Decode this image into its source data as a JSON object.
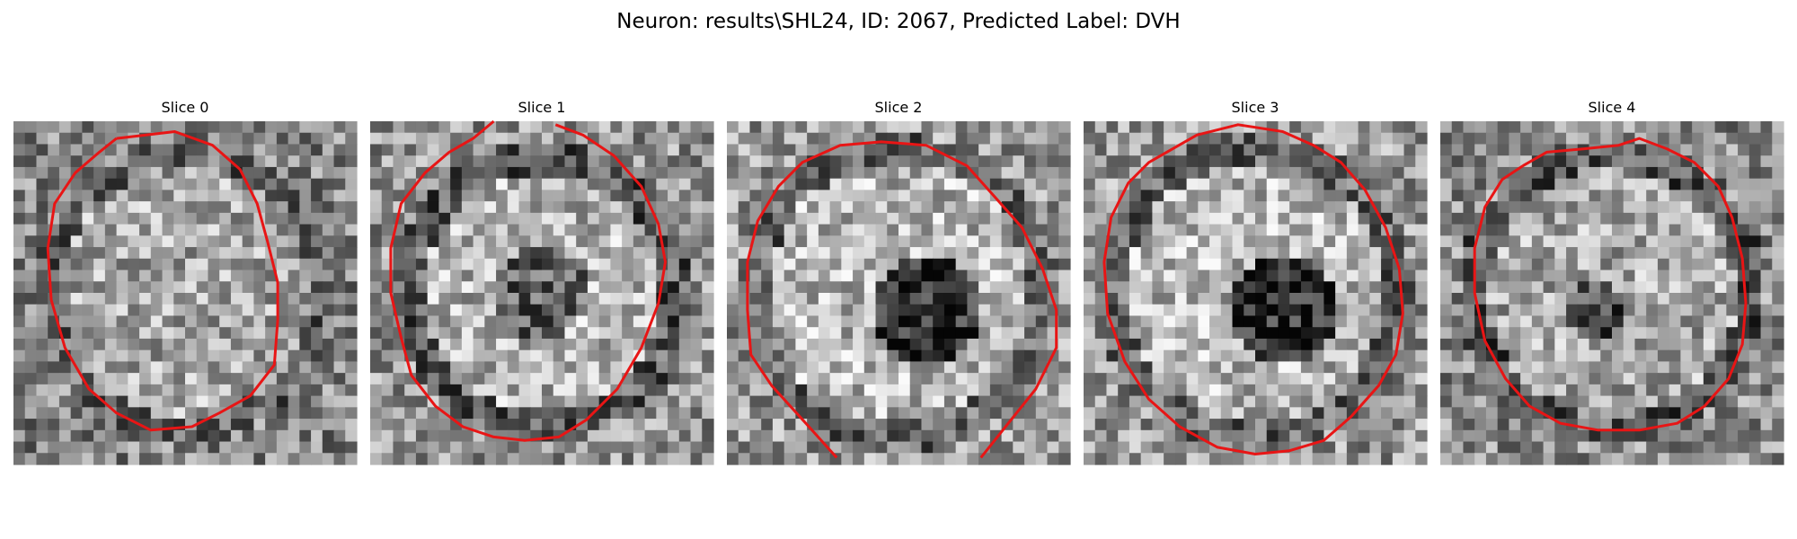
{
  "figure": {
    "title": "Neuron: results\\SHL24, ID: 2067, Predicted Label: DVH"
  },
  "panels": [
    {
      "title": "Slice 0",
      "seed": 11,
      "pattern": "filled",
      "contour": [
        [
          0.3,
          0.05
        ],
        [
          0.47,
          0.03
        ],
        [
          0.58,
          0.07
        ],
        [
          0.66,
          0.14
        ],
        [
          0.71,
          0.24
        ],
        [
          0.74,
          0.35
        ],
        [
          0.77,
          0.47
        ],
        [
          0.77,
          0.58
        ],
        [
          0.76,
          0.71
        ],
        [
          0.69,
          0.8
        ],
        [
          0.6,
          0.85
        ],
        [
          0.52,
          0.89
        ],
        [
          0.4,
          0.9
        ],
        [
          0.3,
          0.85
        ],
        [
          0.22,
          0.78
        ],
        [
          0.15,
          0.66
        ],
        [
          0.11,
          0.52
        ],
        [
          0.1,
          0.37
        ],
        [
          0.12,
          0.24
        ],
        [
          0.18,
          0.15
        ],
        [
          0.25,
          0.09
        ],
        [
          0.3,
          0.05
        ]
      ],
      "closed": true,
      "open_gap": false
    },
    {
      "title": "Slice 1",
      "seed": 23,
      "pattern": "ring",
      "contour": [
        [
          0.36,
          0.0
        ],
        [
          0.3,
          0.05
        ],
        [
          0.23,
          0.09
        ],
        [
          0.16,
          0.15
        ],
        [
          0.09,
          0.24
        ],
        [
          0.06,
          0.37
        ],
        [
          0.06,
          0.5
        ],
        [
          0.09,
          0.63
        ],
        [
          0.12,
          0.74
        ],
        [
          0.19,
          0.83
        ],
        [
          0.27,
          0.89
        ],
        [
          0.36,
          0.92
        ],
        [
          0.45,
          0.93
        ],
        [
          0.55,
          0.92
        ],
        [
          0.63,
          0.87
        ],
        [
          0.72,
          0.78
        ],
        [
          0.79,
          0.66
        ],
        [
          0.84,
          0.53
        ],
        [
          0.86,
          0.41
        ],
        [
          0.84,
          0.3
        ],
        [
          0.79,
          0.19
        ],
        [
          0.71,
          0.1
        ],
        [
          0.62,
          0.04
        ],
        [
          0.54,
          0.01
        ]
      ],
      "closed": false,
      "open_gap": true
    },
    {
      "title": "Slice 2",
      "seed": 37,
      "pattern": "ring-dark",
      "contour": [
        [
          0.32,
          0.98
        ],
        [
          0.23,
          0.88
        ],
        [
          0.13,
          0.77
        ],
        [
          0.07,
          0.68
        ],
        [
          0.06,
          0.55
        ],
        [
          0.06,
          0.41
        ],
        [
          0.09,
          0.29
        ],
        [
          0.15,
          0.19
        ],
        [
          0.22,
          0.12
        ],
        [
          0.33,
          0.07
        ],
        [
          0.45,
          0.06
        ],
        [
          0.58,
          0.07
        ],
        [
          0.7,
          0.13
        ],
        [
          0.78,
          0.22
        ],
        [
          0.86,
          0.31
        ],
        [
          0.92,
          0.43
        ],
        [
          0.96,
          0.55
        ],
        [
          0.96,
          0.66
        ],
        [
          0.9,
          0.78
        ],
        [
          0.82,
          0.88
        ],
        [
          0.74,
          0.98
        ]
      ],
      "closed": false,
      "open_gap": false
    },
    {
      "title": "Slice 3",
      "seed": 53,
      "pattern": "ring-dark",
      "contour": [
        [
          0.26,
          0.08
        ],
        [
          0.33,
          0.04
        ],
        [
          0.45,
          0.01
        ],
        [
          0.58,
          0.03
        ],
        [
          0.67,
          0.07
        ],
        [
          0.75,
          0.12
        ],
        [
          0.82,
          0.2
        ],
        [
          0.88,
          0.31
        ],
        [
          0.92,
          0.43
        ],
        [
          0.93,
          0.56
        ],
        [
          0.91,
          0.68
        ],
        [
          0.86,
          0.77
        ],
        [
          0.78,
          0.86
        ],
        [
          0.7,
          0.93
        ],
        [
          0.6,
          0.96
        ],
        [
          0.5,
          0.97
        ],
        [
          0.39,
          0.95
        ],
        [
          0.28,
          0.89
        ],
        [
          0.19,
          0.81
        ],
        [
          0.12,
          0.7
        ],
        [
          0.07,
          0.56
        ],
        [
          0.06,
          0.41
        ],
        [
          0.08,
          0.28
        ],
        [
          0.13,
          0.18
        ],
        [
          0.19,
          0.12
        ],
        [
          0.26,
          0.08
        ]
      ],
      "closed": true,
      "open_gap": false
    },
    {
      "title": "Slice 4",
      "seed": 71,
      "pattern": "filled-dark-center",
      "contour": [
        [
          0.24,
          0.13
        ],
        [
          0.31,
          0.09
        ],
        [
          0.42,
          0.08
        ],
        [
          0.52,
          0.07
        ],
        [
          0.58,
          0.05
        ],
        [
          0.66,
          0.08
        ],
        [
          0.74,
          0.12
        ],
        [
          0.81,
          0.19
        ],
        [
          0.85,
          0.28
        ],
        [
          0.88,
          0.4
        ],
        [
          0.89,
          0.53
        ],
        [
          0.88,
          0.65
        ],
        [
          0.84,
          0.75
        ],
        [
          0.77,
          0.83
        ],
        [
          0.69,
          0.88
        ],
        [
          0.58,
          0.9
        ],
        [
          0.46,
          0.9
        ],
        [
          0.35,
          0.88
        ],
        [
          0.26,
          0.83
        ],
        [
          0.19,
          0.75
        ],
        [
          0.13,
          0.64
        ],
        [
          0.1,
          0.5
        ],
        [
          0.1,
          0.37
        ],
        [
          0.13,
          0.25
        ],
        [
          0.18,
          0.17
        ],
        [
          0.24,
          0.13
        ]
      ],
      "closed": true,
      "open_gap": false
    }
  ],
  "colors": {
    "contour": "#e81515",
    "background": "#ffffff",
    "text": "#000000"
  }
}
